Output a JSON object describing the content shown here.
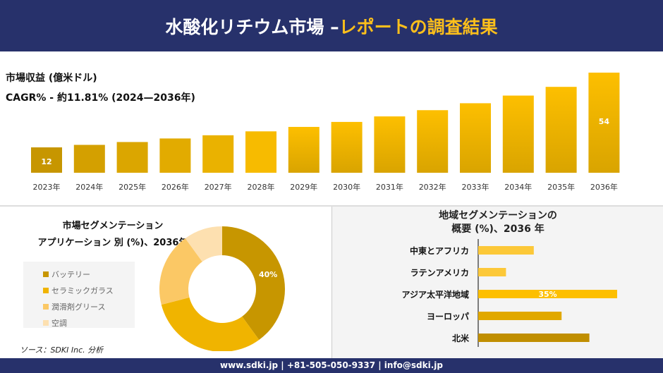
{
  "header": {
    "title_main": "水酸化リチウム市場 –",
    "title_accent": "レポートの調査結果"
  },
  "colors": {
    "header_bg": "#27316b",
    "accent": "#fdbf1b"
  },
  "revenue": {
    "label": "市場収益 (億米ドル)",
    "cagr": "CAGR% - 約11.81% (2024—2036年)"
  },
  "chart_data": [
    {
      "type": "bar",
      "categories": [
        "2023年",
        "2024年",
        "2025年",
        "2026年",
        "2027年",
        "2028年",
        "2029年",
        "2030年",
        "2031年",
        "2032年",
        "2033年",
        "2034年",
        "2035年",
        "2036年"
      ],
      "values": [
        12,
        13.4,
        15,
        17,
        18.8,
        21,
        23.5,
        26.3,
        29.4,
        32.9,
        36.8,
        41.1,
        46,
        54
      ],
      "data_labels": {
        "0": "12",
        "13": "54"
      },
      "grid": false
    },
    {
      "type": "pie",
      "donut": true,
      "title": "市場セグメンテーション アプリケーション 別 (%)、2036年",
      "title_line1": "市場セグメンテーション",
      "title_line2": "アプリケーション 別 (%)、2036年",
      "labels": [
        "バッテリー",
        "セラミックガラス",
        "潤滑剤グリース",
        "空調"
      ],
      "values": [
        40,
        31,
        19,
        10
      ],
      "colors": [
        "#c79600",
        "#f0b400",
        "#fbc865",
        "#fde0b0"
      ],
      "data_labels": [
        "40%",
        "",
        "",
        ""
      ],
      "legend": "left"
    },
    {
      "type": "bar",
      "orientation": "horizontal",
      "title_line1": "地域セグメンテーションの",
      "title_line2": "概要 (%)、2036 年",
      "categories": [
        "中東とアフリカ",
        "ラテンアメリカ",
        "アジア太平洋地域",
        "ヨーロッパ",
        "北米"
      ],
      "values": [
        14,
        7,
        35,
        21,
        28
      ],
      "colors": [
        "#fcc838",
        "#fcc838",
        "#fdbf00",
        "#e1a800",
        "#c08e00"
      ],
      "data_labels": [
        "",
        "",
        "35%",
        "",
        ""
      ]
    }
  ],
  "source": "ソース：SDKI Inc. 分析",
  "footer": "www.sdki.jp | +81-505-050-9337 | info@sdki.jp"
}
